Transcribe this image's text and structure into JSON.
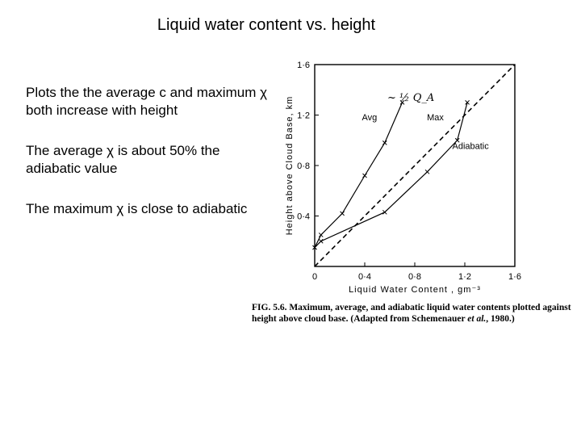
{
  "slide": {
    "title": "Liquid water content vs. height",
    "bullets": [
      "Plots the the average c and maximum χ both increase with height",
      "The average χ is about 50% the adiabatic value",
      "The maximum χ is close to adiabatic"
    ]
  },
  "figure": {
    "caption_part1": "FIG. 5.6. Maximum, average, and adiabatic liquid water contents plotted against height above cloud base. (Adapted from Schemenauer",
    "caption_etal": "et al.",
    "caption_part2": ", 1980.)",
    "handwritten_note": "~ ½ Q_A"
  },
  "chart_data": {
    "type": "line",
    "xlabel": "Liquid Water Content , gm⁻³",
    "ylabel": "Height above Cloud Base, km",
    "xlim": [
      0,
      1.6
    ],
    "ylim": [
      0,
      1.6
    ],
    "xticks": [
      0,
      0.4,
      0.8,
      1.2,
      1.6
    ],
    "xtick_labels": [
      "0",
      "0·4",
      "0·8",
      "1·2",
      "1·6"
    ],
    "yticks": [
      0.4,
      0.8,
      1.2,
      1.6
    ],
    "ytick_labels": [
      "0·4",
      "0·8",
      "1·2",
      "1·6"
    ],
    "series": [
      {
        "name": "Avg",
        "line": "solid",
        "marker": "x",
        "x": [
          0.0,
          0.05,
          0.22,
          0.4,
          0.56,
          0.7
        ],
        "y": [
          0.15,
          0.25,
          0.42,
          0.72,
          0.98,
          1.3
        ]
      },
      {
        "name": "Max",
        "line": "solid",
        "marker": "x",
        "x": [
          0.0,
          0.05,
          0.56,
          0.9,
          1.14,
          1.22
        ],
        "y": [
          0.15,
          0.2,
          0.43,
          0.75,
          1.0,
          1.3
        ]
      },
      {
        "name": "Adiabatic",
        "line": "dashed",
        "marker": "none",
        "x": [
          0.0,
          1.6
        ],
        "y": [
          0.0,
          1.6
        ]
      }
    ],
    "grid": false,
    "legend": "labels placed on curves"
  }
}
